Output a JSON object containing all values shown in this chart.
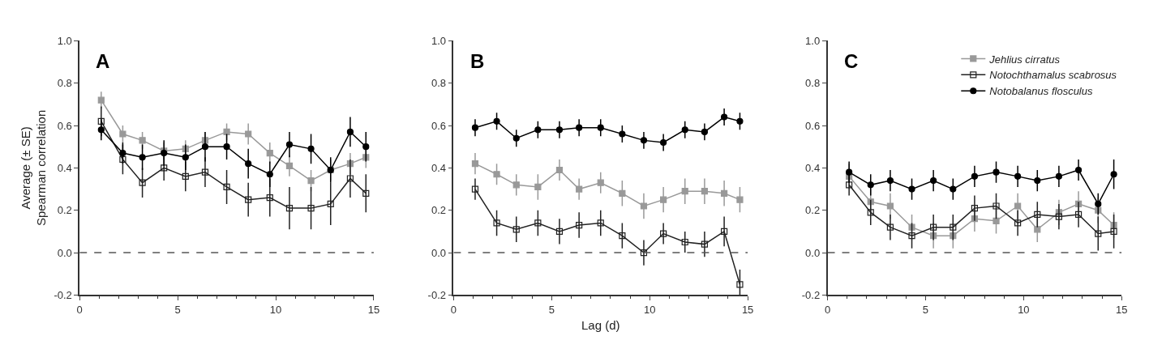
{
  "chart_data": [
    {
      "type": "line",
      "title": "A",
      "ylabel": "Average (± SE)\nSpearman correlation",
      "xlim": [
        0,
        15
      ],
      "xticks": [
        0,
        5,
        10,
        15
      ],
      "ylim": [
        -0.2,
        1.0
      ],
      "yticks": [
        {
          "value": -0.2,
          "label": "-0.2"
        },
        {
          "value": 0,
          "label": "0.0"
        },
        {
          "value": 0.2,
          "label": "0.2"
        },
        {
          "value": 0.4,
          "label": "0.4"
        },
        {
          "value": 0.6,
          "label": "0.6"
        },
        {
          "value": 0.8,
          "label": "0.8"
        },
        {
          "value": 1.0,
          "label": "1.0"
        }
      ],
      "legend": false,
      "x": [
        1.1,
        2.2,
        3.2,
        4.3,
        5.4,
        6.4,
        7.5,
        8.6,
        9.7,
        10.7,
        11.8,
        12.8,
        13.8,
        14.6
      ],
      "ref_lines": [
        {
          "axis": "y",
          "value": 0,
          "line_style": "dashed",
          "color": "#555555"
        }
      ],
      "series": [
        {
          "color": "#999999",
          "marker": "square",
          "values": [
            0.72,
            0.56,
            0.53,
            0.48,
            0.49,
            0.53,
            0.57,
            0.56,
            0.47,
            0.41,
            0.34,
            0.39,
            0.42,
            0.45
          ],
          "errors": [
            0.04,
            0.04,
            0.04,
            0.04,
            0.04,
            0.04,
            0.04,
            0.05,
            0.05,
            0.05,
            0.05,
            0.05,
            0.05,
            0.05
          ]
        },
        {
          "color": "#222222",
          "marker": "square-open",
          "values": [
            0.62,
            0.44,
            0.33,
            0.4,
            0.36,
            0.38,
            0.31,
            0.25,
            0.26,
            0.21,
            0.21,
            0.23,
            0.35,
            0.28
          ],
          "errors": [
            0.07,
            0.07,
            0.07,
            0.06,
            0.07,
            0.07,
            0.08,
            0.08,
            0.09,
            0.1,
            0.1,
            0.1,
            0.09,
            0.09
          ]
        },
        {
          "color": "#000000",
          "marker": "circle",
          "values": [
            0.58,
            0.47,
            0.45,
            0.47,
            0.45,
            0.5,
            0.5,
            0.42,
            0.37,
            0.51,
            0.49,
            0.39,
            0.57,
            0.5
          ],
          "errors": [
            0.05,
            0.05,
            0.06,
            0.06,
            0.06,
            0.07,
            0.06,
            0.07,
            0.06,
            0.06,
            0.07,
            0.06,
            0.07,
            0.07
          ]
        }
      ]
    },
    {
      "type": "line",
      "title": "B",
      "xlabel": "Lag (d)",
      "xlim": [
        0,
        15
      ],
      "xticks": [
        0,
        5,
        10,
        15
      ],
      "ylim": [
        -0.2,
        1.0
      ],
      "yticks": [
        {
          "value": -0.2,
          "label": "-0.2"
        },
        {
          "value": 0,
          "label": "0.0"
        },
        {
          "value": 0.2,
          "label": "0.2"
        },
        {
          "value": 0.4,
          "label": "0.4"
        },
        {
          "value": 0.6,
          "label": "0.6"
        },
        {
          "value": 0.8,
          "label": "0.8"
        },
        {
          "value": 1.0,
          "label": "1.0"
        }
      ],
      "legend": false,
      "x": [
        1.1,
        2.2,
        3.2,
        4.3,
        5.4,
        6.4,
        7.5,
        8.6,
        9.7,
        10.7,
        11.8,
        12.8,
        13.8,
        14.6
      ],
      "ref_lines": [
        {
          "axis": "y",
          "value": 0,
          "line_style": "dashed",
          "color": "#555555"
        }
      ],
      "series": [
        {
          "color": "#999999",
          "marker": "square",
          "values": [
            0.42,
            0.37,
            0.32,
            0.31,
            0.39,
            0.3,
            0.33,
            0.28,
            0.22,
            0.25,
            0.29,
            0.29,
            0.28,
            0.25
          ],
          "errors": [
            0.05,
            0.05,
            0.05,
            0.06,
            0.05,
            0.05,
            0.05,
            0.06,
            0.06,
            0.06,
            0.06,
            0.06,
            0.06,
            0.06
          ]
        },
        {
          "color": "#222222",
          "marker": "square-open",
          "values": [
            0.3,
            0.14,
            0.11,
            0.14,
            0.1,
            0.13,
            0.14,
            0.08,
            0.0,
            0.09,
            0.05,
            0.04,
            0.1,
            -0.15
          ],
          "errors": [
            0.05,
            0.06,
            0.06,
            0.06,
            0.06,
            0.06,
            0.06,
            0.06,
            0.06,
            0.05,
            0.05,
            0.06,
            0.07,
            0.07
          ]
        },
        {
          "color": "#000000",
          "marker": "circle",
          "values": [
            0.59,
            0.62,
            0.54,
            0.58,
            0.58,
            0.59,
            0.59,
            0.56,
            0.53,
            0.52,
            0.58,
            0.57,
            0.64,
            0.62
          ],
          "errors": [
            0.04,
            0.04,
            0.04,
            0.04,
            0.04,
            0.04,
            0.04,
            0.04,
            0.04,
            0.04,
            0.04,
            0.04,
            0.04,
            0.04
          ]
        }
      ]
    },
    {
      "type": "line",
      "title": "C",
      "xlim": [
        0,
        15
      ],
      "xticks": [
        0,
        5,
        10,
        15
      ],
      "ylim": [
        -0.2,
        1.0
      ],
      "yticks": [
        {
          "value": -0.2,
          "label": "-0.2"
        },
        {
          "value": 0,
          "label": "0.0"
        },
        {
          "value": 0.2,
          "label": "0.2"
        },
        {
          "value": 0.4,
          "label": "0.4"
        },
        {
          "value": 0.6,
          "label": "0.6"
        },
        {
          "value": 0.8,
          "label": "0.8"
        },
        {
          "value": 1.0,
          "label": "1.0"
        }
      ],
      "legend": "top right",
      "x": [
        1.1,
        2.2,
        3.2,
        4.3,
        5.4,
        6.4,
        7.5,
        8.6,
        9.7,
        10.7,
        11.8,
        12.8,
        13.8,
        14.6
      ],
      "ref_lines": [
        {
          "axis": "y",
          "value": 0,
          "line_style": "dashed",
          "color": "#555555"
        }
      ],
      "series": [
        {
          "name": "Jehlius cirratus",
          "color": "#999999",
          "marker": "square",
          "values": [
            0.36,
            0.24,
            0.22,
            0.12,
            0.08,
            0.08,
            0.16,
            0.15,
            0.22,
            0.11,
            0.19,
            0.23,
            0.2,
            0.13
          ],
          "errors": [
            0.06,
            0.06,
            0.06,
            0.06,
            0.06,
            0.06,
            0.06,
            0.06,
            0.06,
            0.06,
            0.06,
            0.06,
            0.06,
            0.06
          ]
        },
        {
          "name": "Notochthamalus scabrosus",
          "color": "#222222",
          "marker": "square-open",
          "values": [
            0.32,
            0.19,
            0.12,
            0.08,
            0.12,
            0.12,
            0.21,
            0.22,
            0.14,
            0.18,
            0.17,
            0.18,
            0.09,
            0.1
          ],
          "errors": [
            0.05,
            0.06,
            0.06,
            0.06,
            0.06,
            0.06,
            0.06,
            0.06,
            0.06,
            0.06,
            0.06,
            0.06,
            0.08,
            0.08
          ]
        },
        {
          "name": "Notobalanus flosculus",
          "color": "#000000",
          "marker": "circle",
          "values": [
            0.38,
            0.32,
            0.34,
            0.3,
            0.34,
            0.3,
            0.36,
            0.38,
            0.36,
            0.34,
            0.36,
            0.39,
            0.23,
            0.37
          ],
          "errors": [
            0.05,
            0.05,
            0.05,
            0.05,
            0.05,
            0.05,
            0.05,
            0.05,
            0.05,
            0.05,
            0.05,
            0.05,
            0.05,
            0.07
          ]
        }
      ]
    }
  ]
}
